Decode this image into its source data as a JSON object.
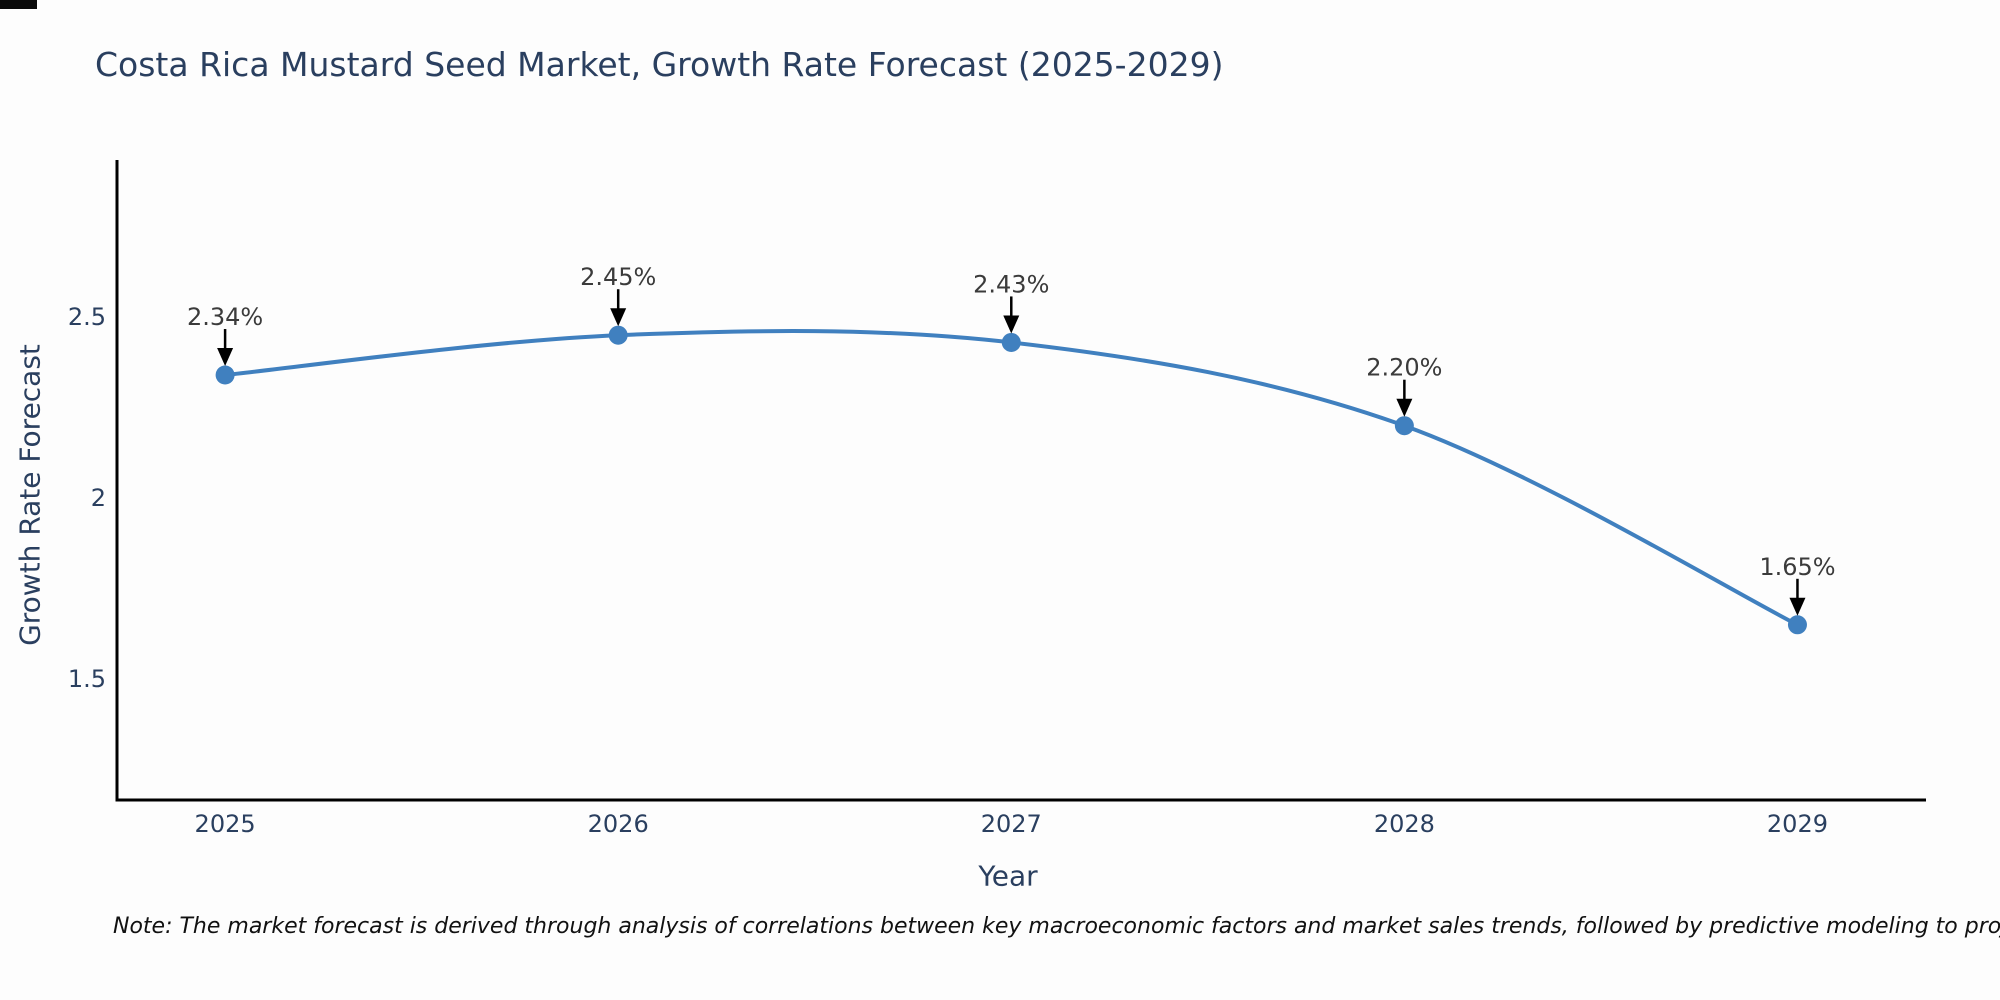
{
  "page": {
    "background": "#fdfdfd"
  },
  "chart_data": {
    "type": "line",
    "title": "Costa Rica Mustard Seed Market, Growth Rate Forecast (2025-2029)",
    "xlabel": "Year",
    "ylabel": "Growth Rate Forecast",
    "x": [
      2025,
      2026,
      2027,
      2028,
      2029
    ],
    "y": [
      2.34,
      2.45,
      2.43,
      2.2,
      1.65
    ],
    "point_labels": [
      "2.34%",
      "2.45%",
      "2.43%",
      "2.20%",
      "1.65%"
    ],
    "xtick_labels": [
      "2025",
      "2026",
      "2027",
      "2028",
      "2029"
    ],
    "ytick_values": [
      2.5,
      2.0,
      1.5
    ],
    "ytick_labels": [
      "2.5",
      "2",
      "1.5"
    ],
    "xlim": [
      2024.725,
      2029.327
    ],
    "ylim": [
      1.166,
      2.934
    ],
    "line_shape": "spline",
    "grid": false,
    "legend_position": "none",
    "colors": {
      "line": "#4080bf",
      "marker": "#4080bf",
      "axis": "#000000",
      "tick_text": "#2a3f5f",
      "title_text": "#2a3f5f",
      "annotation_text": "#3b3b3b",
      "annotation_arrow": "#000000"
    }
  },
  "footer": {
    "note": "Note: The market forecast is derived through analysis of correlations between key macroeconomic factors and market sales trends, followed by predictive modeling to project future sales"
  }
}
